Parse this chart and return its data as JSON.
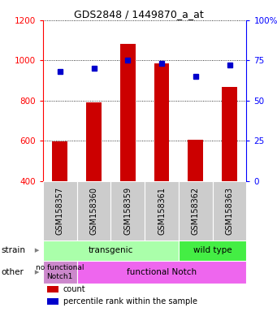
{
  "title": "GDS2848 / 1449870_a_at",
  "samples": [
    "GSM158357",
    "GSM158360",
    "GSM158359",
    "GSM158361",
    "GSM158362",
    "GSM158363"
  ],
  "counts": [
    596,
    790,
    1081,
    985,
    607,
    868
  ],
  "percentiles": [
    68,
    70,
    75,
    73,
    65,
    72
  ],
  "ylim_left": [
    400,
    1200
  ],
  "ylim_right": [
    0,
    100
  ],
  "bar_color": "#cc0000",
  "dot_color": "#0000cc",
  "strain_transgenic_label": "transgenic",
  "strain_wildtype_label": "wild type",
  "other_nofunc_label": "no functional\nNotch1",
  "other_func_label": "functional Notch",
  "strain_row_label": "strain",
  "other_row_label": "other",
  "legend_count": "count",
  "legend_pct": "percentile rank within the sample",
  "light_green": "#aaffaa",
  "bright_green": "#44ee44",
  "magenta": "#ee66ee",
  "pink_magenta": "#cc88cc",
  "gray_bg": "#cccccc",
  "left_yticks": [
    400,
    600,
    800,
    1000,
    1200
  ],
  "right_yticks": [
    0,
    25,
    50,
    75,
    100
  ]
}
